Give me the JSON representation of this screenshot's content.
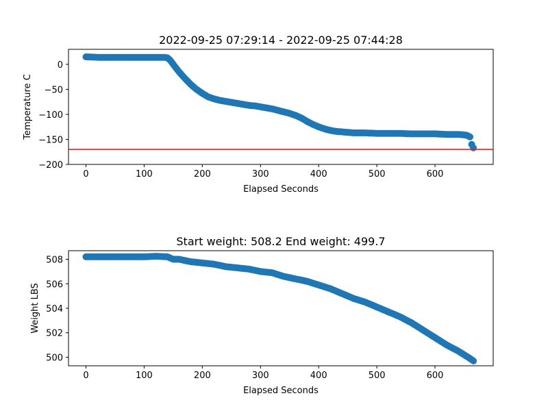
{
  "chart_data": [
    {
      "type": "scatter",
      "title": "2022-09-25 07:29:14 - 2022-09-25 07:44:28",
      "xlabel": "Elapsed Seconds",
      "ylabel": "Temperature C",
      "xlim": [
        -30,
        700
      ],
      "ylim": [
        -200,
        30
      ],
      "xticks": [
        0,
        100,
        200,
        300,
        400,
        500,
        600
      ],
      "yticks": [
        0,
        -50,
        -100,
        -150,
        -200
      ],
      "ytick_labels": [
        "0",
        "−50",
        "−100",
        "−150",
        "−200"
      ],
      "reference_line": {
        "y": -170,
        "color": "#d62728"
      },
      "marker_color": "#1f77b4",
      "grid": false,
      "series": [
        {
          "x": [
            0,
            20,
            40,
            60,
            80,
            100,
            120,
            135,
            140,
            145,
            150,
            160,
            170,
            180,
            190,
            200,
            210,
            220,
            230,
            240,
            250,
            260,
            270,
            280,
            290,
            300,
            310,
            320,
            330,
            340,
            350,
            360,
            370,
            380,
            390,
            400,
            410,
            420,
            430,
            440,
            450,
            460,
            480,
            500,
            520,
            540,
            560,
            580,
            600,
            620,
            640,
            650,
            655,
            660,
            663,
            666
          ],
          "y": [
            15,
            14,
            14,
            14,
            14,
            14,
            14,
            14,
            13,
            8,
            0,
            -15,
            -28,
            -40,
            -50,
            -58,
            -65,
            -69,
            -72,
            -74,
            -76,
            -78,
            -80,
            -82,
            -83,
            -85,
            -87,
            -89,
            -92,
            -95,
            -98,
            -102,
            -107,
            -114,
            -120,
            -125,
            -129,
            -132,
            -134,
            -135,
            -136,
            -137,
            -137,
            -138,
            -138,
            -138,
            -139,
            -139,
            -139,
            -140,
            -140,
            -141,
            -142,
            -145,
            -160,
            -167
          ]
        }
      ]
    },
    {
      "type": "scatter",
      "title": "Start weight: 508.2 End weight: 499.7",
      "xlabel": "Elapsed Seconds",
      "ylabel": "Weight LBS",
      "xlim": [
        -30,
        700
      ],
      "ylim": [
        499.3,
        508.7
      ],
      "xticks": [
        0,
        100,
        200,
        300,
        400,
        500,
        600
      ],
      "yticks": [
        500,
        502,
        504,
        506,
        508
      ],
      "ytick_labels": [
        "500",
        "502",
        "504",
        "506",
        "508"
      ],
      "marker_color": "#1f77b4",
      "grid": false,
      "series": [
        {
          "x": [
            0,
            20,
            40,
            60,
            80,
            100,
            120,
            140,
            150,
            160,
            180,
            200,
            220,
            240,
            260,
            280,
            300,
            320,
            340,
            360,
            380,
            400,
            420,
            440,
            460,
            480,
            500,
            520,
            540,
            560,
            580,
            600,
            620,
            640,
            660,
            666
          ],
          "y": [
            508.2,
            508.2,
            508.2,
            508.2,
            508.2,
            508.2,
            508.25,
            508.2,
            508.0,
            508.0,
            507.8,
            507.7,
            507.6,
            507.4,
            507.3,
            507.2,
            507.0,
            506.9,
            506.6,
            506.4,
            506.2,
            505.9,
            505.6,
            505.2,
            504.8,
            504.5,
            504.1,
            503.7,
            503.3,
            502.8,
            502.2,
            501.6,
            501.0,
            500.5,
            499.9,
            499.7
          ]
        }
      ]
    }
  ]
}
